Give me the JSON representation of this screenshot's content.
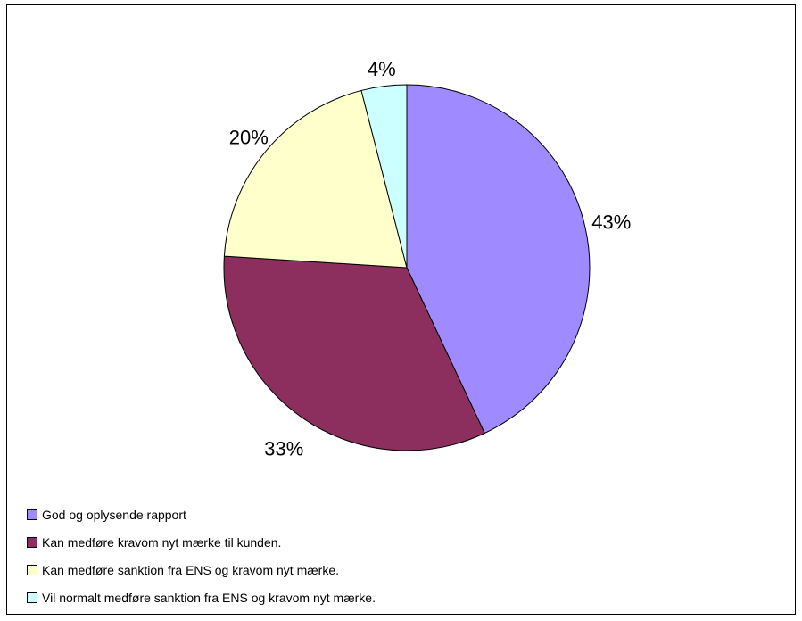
{
  "chart_data": {
    "type": "pie",
    "slices": [
      {
        "label": "God og oplysende rapport",
        "value": 43,
        "value_label": "43%",
        "color": "#9f8aff"
      },
      {
        "label": "Kan medføre kravom nyt mærke til kunden.",
        "value": 33,
        "value_label": "33%",
        "color": "#8c2f5e"
      },
      {
        "label": "Kan medføre sanktion fra ENS og kravom nyt mærke.",
        "value": 20,
        "value_label": "20%",
        "color": "#ffffcc"
      },
      {
        "label": "Vil normalt medføre sanktion fra ENS og kravom nyt mærke.",
        "value": 4,
        "value_label": "4%",
        "color": "#ccffff"
      }
    ],
    "start_angle": "12 o'clock",
    "direction": "clockwise",
    "legend_placement": "bottom-left"
  }
}
